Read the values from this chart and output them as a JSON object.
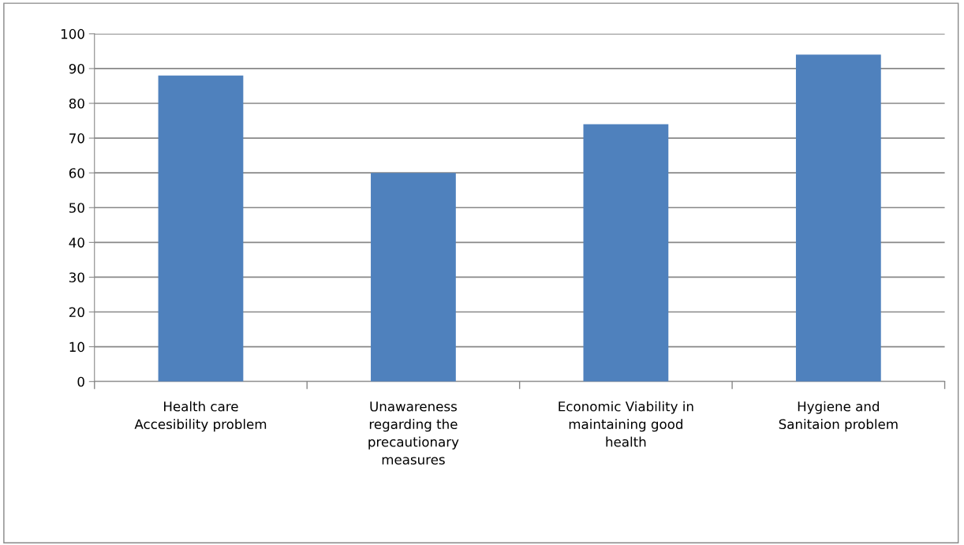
{
  "chart_data": {
    "type": "bar",
    "categories": [
      "Health care\nAccesibility problem",
      "Unawareness\nregarding the\nprecautionary\nmeasures",
      "Economic Viability in\nmaintaining good\nhealth",
      "Hygiene and\nSanitaion problem"
    ],
    "values": [
      88,
      60,
      74,
      94
    ],
    "color": "#4f81bd",
    "ylim": [
      0,
      100
    ],
    "yticks": [
      0,
      10,
      20,
      30,
      40,
      50,
      60,
      70,
      80,
      90,
      100
    ],
    "grid": "y"
  }
}
